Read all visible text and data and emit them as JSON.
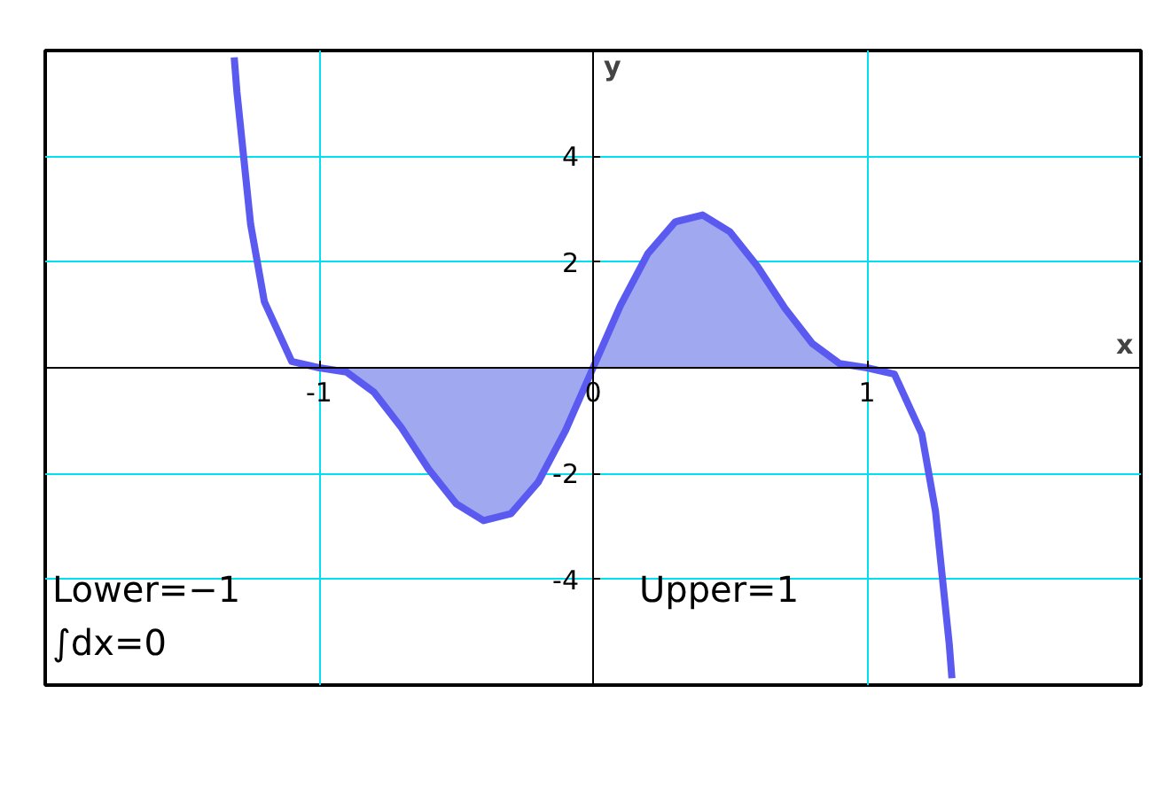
{
  "chart_data": {
    "type": "line",
    "xlabel": "x",
    "ylabel": "y",
    "xlim": [
      -2,
      2
    ],
    "ylim": [
      -6,
      6
    ],
    "xticks": [
      -1,
      0,
      1
    ],
    "yticks": [
      {
        "value": -6,
        "label": null
      },
      -4,
      -2,
      2,
      4,
      {
        "value": 6,
        "label": null
      }
    ],
    "grid": true,
    "line_style": "solid",
    "marker": "none",
    "series": [
      {
        "type": "area",
        "color": "#a0a8f0",
        "x": [
          -1,
          -0.9,
          -0.8,
          -0.7,
          -0.6,
          -0.5,
          -0.4,
          -0.3,
          -0.2,
          -0.1,
          0
        ],
        "values": [
          0,
          -0.08,
          -0.46,
          -1.13,
          -1.92,
          -2.57,
          -2.89,
          -2.76,
          -2.16,
          -1.18,
          0
        ]
      },
      {
        "type": "area",
        "color": "#a0a8f0",
        "x": [
          0,
          0.1,
          0.2,
          0.3,
          0.4,
          0.5,
          0.6,
          0.7,
          0.8,
          0.9,
          1
        ],
        "values": [
          0,
          1.18,
          2.16,
          2.76,
          2.89,
          2.57,
          1.92,
          1.13,
          0.46,
          0.08,
          0
        ]
      },
      {
        "color": "#5a5af0",
        "x": [
          -1.31,
          -1.3,
          -1.25,
          -1.2,
          -1.1,
          -1,
          -0.9,
          -0.8,
          -0.7,
          -0.6,
          -0.5,
          -0.4,
          -0.3,
          -0.2,
          -0.1,
          0,
          0.1,
          0.2,
          0.3,
          0.4,
          0.5,
          0.6,
          0.7,
          0.8,
          0.9,
          1,
          1.1,
          1.2,
          1.25,
          1.3,
          1.31
        ],
        "values": [
          5.87,
          5.21,
          2.71,
          1.25,
          0.12,
          0,
          -0.08,
          -0.46,
          -1.13,
          -1.92,
          -2.57,
          -2.89,
          -2.76,
          -2.16,
          -1.18,
          0,
          1.18,
          2.16,
          2.76,
          2.89,
          2.57,
          1.92,
          1.13,
          0.46,
          0.08,
          0,
          -0.12,
          -1.25,
          -2.71,
          -5.21,
          -5.87
        ]
      }
    ],
    "annotations": [
      "Lower=−1",
      "Upper=1",
      "∫dx=0"
    ]
  }
}
